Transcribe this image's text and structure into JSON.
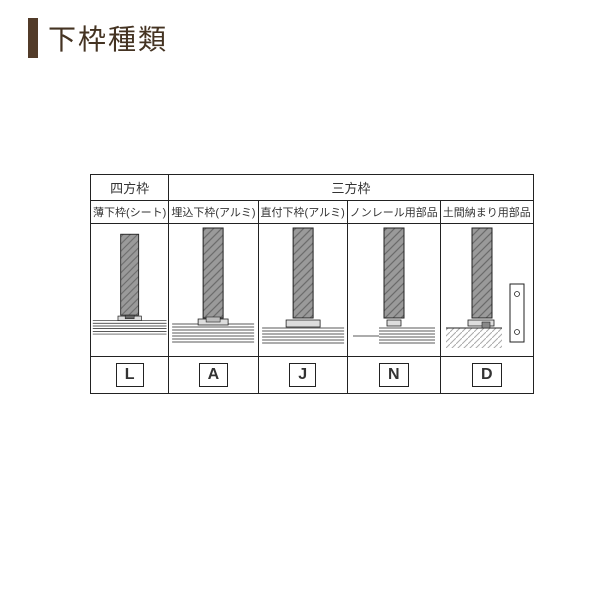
{
  "title": "下枠種類",
  "accent_color": "#523b29",
  "table": {
    "header_groups": [
      {
        "label": "四方枠",
        "span": 1
      },
      {
        "label": "三方枠",
        "span": 4
      }
    ],
    "subheaders": [
      "薄下枠(シート)",
      "埋込下枠(アルミ)",
      "直付下枠(アルミ)",
      "ノンレール用部品",
      "土間納まり用部品"
    ],
    "letters": [
      "L",
      "A",
      "J",
      "N",
      "D"
    ],
    "diagram_colors": {
      "hatch": "#9a9a9a",
      "hatch_stroke": "#6a6a6a",
      "line": "#222222",
      "rail": "#888888",
      "floor_hatch": "#aaaaaa"
    }
  }
}
